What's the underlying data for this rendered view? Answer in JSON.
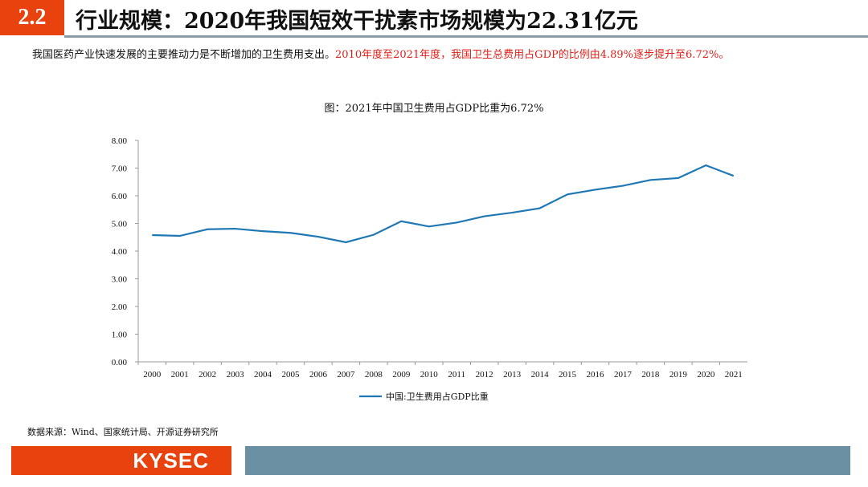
{
  "header": {
    "section": "2.2",
    "title": "行业规模：2020年我国短效干扰素市场规模为22.31亿元"
  },
  "intro": {
    "black": "我国医药产业快速发展的主要推动力是不断增加的卫生费用支出。",
    "red": "2010年度至2021年度，我国卫生总费用占GDP的比例由4.89%逐步提升至6.72%。"
  },
  "chart_data": {
    "type": "line",
    "title": "图：2021年中国卫生费用占GDP比重为6.72%",
    "categories": [
      "2000",
      "2001",
      "2002",
      "2003",
      "2004",
      "2005",
      "2006",
      "2007",
      "2008",
      "2009",
      "2010",
      "2011",
      "2012",
      "2013",
      "2014",
      "2015",
      "2016",
      "2017",
      "2018",
      "2019",
      "2020",
      "2021"
    ],
    "series": [
      {
        "name": "中国:卫生费用占GDP比重",
        "color": "#1f77b4",
        "values": [
          4.58,
          4.55,
          4.79,
          4.81,
          4.72,
          4.66,
          4.52,
          4.32,
          4.59,
          5.08,
          4.89,
          5.03,
          5.26,
          5.39,
          5.55,
          6.05,
          6.22,
          6.36,
          6.57,
          6.64,
          7.1,
          6.72
        ]
      }
    ],
    "yticks": [
      "0.00",
      "1.00",
      "2.00",
      "3.00",
      "4.00",
      "5.00",
      "6.00",
      "7.00",
      "8.00"
    ],
    "ylim": [
      0,
      8
    ],
    "grid": false,
    "legend": "bottom"
  },
  "footer": {
    "source": "数据来源：Wind、国家统计局、开源证券研究所",
    "logo": "KYSEC"
  }
}
